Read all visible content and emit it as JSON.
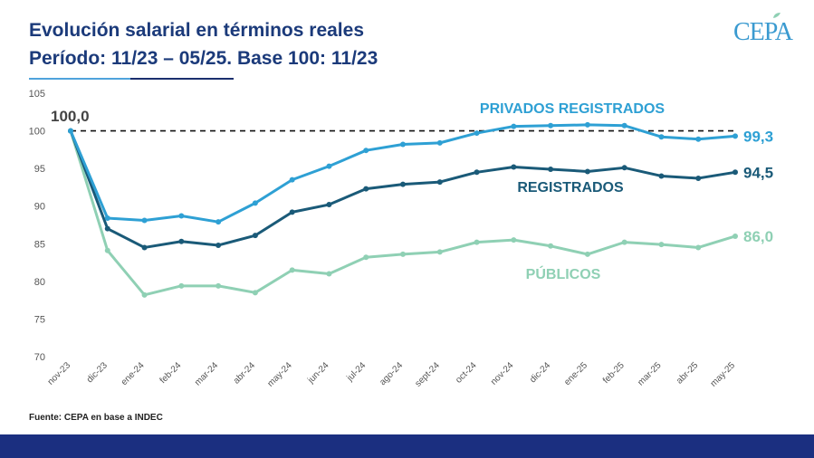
{
  "header": {
    "title_line1": "Evolución salarial en términos reales",
    "title_line2": "Período: 11/23 – 05/25. Base 100: 11/23",
    "logo_text": "CEPA"
  },
  "footer": {
    "source": "Fuente: CEPA en base a INDEC"
  },
  "colors": {
    "privados": "#2ea0d4",
    "registrados": "#1a5a78",
    "publicos": "#8fd0b4",
    "title": "#1b3a7a",
    "footer_bar": "#1b2f80"
  },
  "chart_data": {
    "type": "line",
    "categories": [
      "nov-23",
      "dic-23",
      "ene-24",
      "feb-24",
      "mar-24",
      "abr-24",
      "may-24",
      "jun-24",
      "jul-24",
      "ago-24",
      "sept-24",
      "oct-24",
      "nov-24",
      "dic-24",
      "ene-25",
      "feb-25",
      "mar-25",
      "abr-25",
      "may-25"
    ],
    "ylim": [
      70,
      105
    ],
    "yticks": [
      70,
      75,
      80,
      85,
      90,
      95,
      100,
      105
    ],
    "reference_line": 100,
    "base_label": "100,0",
    "series": [
      {
        "name": "PRIVADOS REGISTRADOS",
        "color": "#2ea0d4",
        "end_label": "99,3",
        "values": [
          100,
          88.4,
          88.1,
          88.7,
          87.9,
          90.4,
          93.5,
          95.3,
          97.4,
          98.2,
          98.4,
          99.7,
          100.6,
          100.7,
          100.8,
          100.7,
          99.2,
          98.9,
          99.3
        ]
      },
      {
        "name": "REGISTRADOS",
        "color": "#1a5a78",
        "end_label": "94,5",
        "values": [
          100,
          87.0,
          84.5,
          85.3,
          84.8,
          86.1,
          89.2,
          90.2,
          92.3,
          92.9,
          93.2,
          94.5,
          95.2,
          94.9,
          94.6,
          95.1,
          94.0,
          93.7,
          94.5
        ]
      },
      {
        "name": "PÚBLICOS",
        "color": "#8fd0b4",
        "end_label": "86,0",
        "values": [
          100,
          84.1,
          78.2,
          79.4,
          79.4,
          78.5,
          81.5,
          81.0,
          83.2,
          83.6,
          83.9,
          85.2,
          85.5,
          84.7,
          83.6,
          85.2,
          84.9,
          84.5,
          86.0
        ]
      }
    ]
  }
}
